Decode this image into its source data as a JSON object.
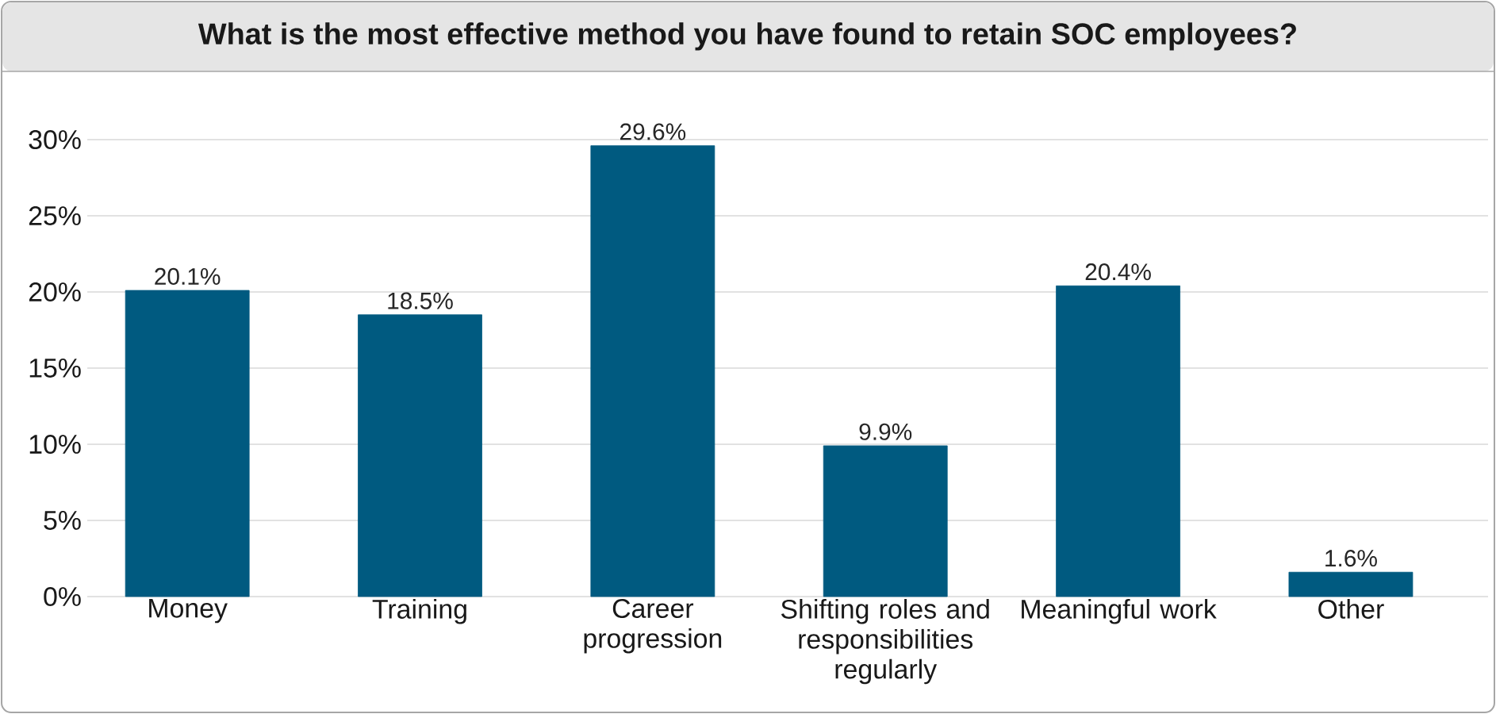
{
  "chart_data": {
    "type": "bar",
    "title": "What is the most effective method you have found to retain SOC employees?",
    "categories": [
      "Money",
      "Training",
      "Career progression",
      "Shifting roles and responsibilities regularly",
      "Meaningful work",
      "Other"
    ],
    "values": [
      20.1,
      18.5,
      29.6,
      9.9,
      20.4,
      1.6
    ],
    "value_labels": [
      "20.1%",
      "18.5%",
      "29.6%",
      "9.9%",
      "20.4%",
      "1.6%"
    ],
    "color": "#005a80",
    "ylim": [
      0,
      30
    ],
    "yticks": [
      {
        "value": 0,
        "label": "0%"
      },
      {
        "value": 5,
        "label": "5%"
      },
      {
        "value": 10,
        "label": "10%"
      },
      {
        "value": 15,
        "label": "15%"
      },
      {
        "value": 20,
        "label": "20%"
      },
      {
        "value": 25,
        "label": "25%"
      },
      {
        "value": 30,
        "label": "30%"
      }
    ],
    "grid": "y"
  }
}
